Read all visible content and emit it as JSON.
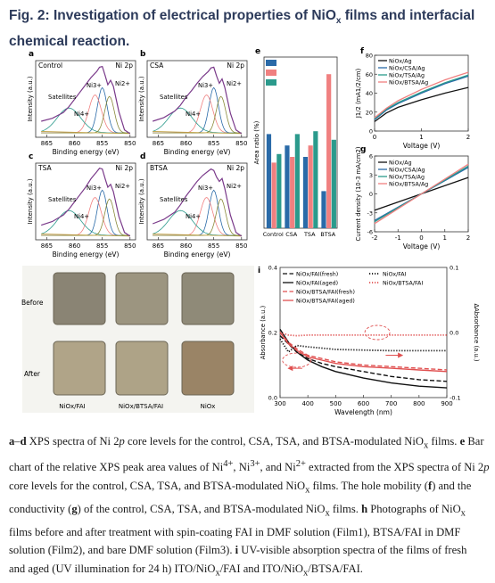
{
  "figure_title": "Fig. 2: Investigation of electrical properties of NiOx films and interfacial chemical reaction.",
  "caption": "a–d XPS spectra of Ni 2p core levels for the control, CSA, TSA, and BTSA-modulated NiOx films. e Bar chart of the relative XPS peak area values of Ni4+, Ni3+, and Ni2+ extracted from the XPS spectra of Ni 2p core levels for the control, CSA, TSA, and BTSA-modulated NiOx films. The hole mobility (f) and the conductivity (g) of the control, CSA, TSA, and BTSA-modulated NiOx films. h Photographs of NiOx films before and after treatment with spin-coating FAI in DMF solution (Film1), BTSA/FAI in DMF solution (Film2), and bare DMF solution (Film3). i UV-visible absorption spectra of the films of fresh and aged (UV illumination for 24 h) ITO/NiOx/FAI and ITO/NiOx/BTSA/FAI.",
  "caption_parts": {
    "l1a": "a",
    "l1b": "–",
    "l1c": "d",
    "l1d": " XPS spectra of Ni 2",
    "l1e": "p",
    "l1f": " core levels for the control, CSA, TSA, and BTSA-modulated NiO",
    "l1g": "x",
    "l1h": " films. ",
    "l1i": "e",
    "l1j": " Bar",
    "l2a": "chart of the relative XPS peak area values of Ni",
    "l2b": "4+",
    "l2c": ", Ni",
    "l2d": "3+",
    "l2e": ", and Ni",
    "l2f": "2+",
    "l2g": " extracted from the XPS spectra of Ni 2",
    "l2h": "p",
    "l3a": "core levels for the control, CSA, TSA, and BTSA-modulated NiO",
    "l3b": "x",
    "l3c": " films. The hole mobility (",
    "l3d": "f",
    "l3e": ") and the",
    "l4a": "conductivity (",
    "l4b": "g",
    "l4c": ") of the control, CSA, TSA, and BTSA-modulated NiO",
    "l4d": "x",
    "l4e": " films. ",
    "l4f": "h",
    "l4g": " Photographs of NiO",
    "l4h": "x",
    "l5a": "films before and after treatment with spin-coating FAI in DMF solution (Film1), BTSA/FAI in DMF",
    "l6a": "solution (Film2), and bare DMF solution (Film3). ",
    "l6b": "i",
    "l6c": " UV-visible absorption spectra of the films of fresh",
    "l7a": "and aged (UV illumination for 24 h) ITO/NiO",
    "l7b": "x",
    "l7c": "/FAI and ITO/NiO",
    "l7d": "x",
    "l7e": "/BTSA/FAI."
  },
  "panel_letters": {
    "a": "a",
    "b": "b",
    "c": "c",
    "d": "d",
    "e": "e",
    "f": "f",
    "g": "g",
    "h": "h",
    "i": "i"
  },
  "chart_data": [
    {
      "panel": "a",
      "type": "line",
      "label": "Control",
      "peak_label": "Ni 2p",
      "xlabel": "Binding energy (eV)",
      "ylabel": "Intensity (a.u.)",
      "x_ticks": [
        "865",
        "860",
        "855",
        "850"
      ],
      "xlim": [
        867,
        849
      ],
      "x_reversed": true,
      "annotations": [
        "Satellites",
        "Ni3+",
        "Ni2+",
        "Ni4+"
      ],
      "series": [
        {
          "x": [
            866,
            864,
            862,
            861,
            860,
            859,
            858,
            857,
            856,
            855.5,
            855,
            854.5,
            854,
            853.5,
            853,
            852,
            851,
            850
          ],
          "values": [
            0.22,
            0.26,
            0.34,
            0.42,
            0.52,
            0.62,
            0.72,
            0.82,
            0.9,
            0.96,
            0.97,
            0.85,
            0.72,
            0.78,
            0.7,
            0.35,
            0.1,
            0.05
          ]
        }
      ]
    },
    {
      "panel": "b",
      "type": "line",
      "label": "CSA",
      "peak_label": "Ni 2p",
      "xlabel": "Binding energy (eV)",
      "ylabel": "Intensity (a.u.)",
      "x_ticks": [
        "865",
        "860",
        "855",
        "850"
      ],
      "xlim": [
        867,
        849
      ],
      "x_reversed": true,
      "annotations": [
        "Satellites",
        "Ni3+",
        "Ni2+",
        "Ni4+"
      ],
      "series": [
        {
          "x": [
            866,
            864,
            862,
            861,
            860,
            859,
            858,
            857,
            856,
            855.5,
            855,
            854.5,
            854,
            853.5,
            853,
            852,
            851,
            850
          ],
          "values": [
            0.22,
            0.27,
            0.36,
            0.44,
            0.55,
            0.64,
            0.74,
            0.83,
            0.9,
            0.95,
            0.96,
            0.84,
            0.74,
            0.8,
            0.68,
            0.33,
            0.1,
            0.05
          ]
        }
      ]
    },
    {
      "panel": "c",
      "type": "line",
      "label": "TSA",
      "peak_label": "Ni 2p",
      "xlabel": "Binding energy (eV)",
      "ylabel": "Intensity (a.u.)",
      "x_ticks": [
        "865",
        "860",
        "855",
        "850"
      ],
      "xlim": [
        867,
        849
      ],
      "x_reversed": true,
      "annotations": [
        "Satellites",
        "Ni3+",
        "Ni2+",
        "Ni4+"
      ],
      "series": [
        {
          "x": [
            866,
            864,
            862,
            861,
            860,
            859,
            858,
            857,
            856,
            855.5,
            855,
            854.5,
            854,
            853.5,
            853,
            852,
            851,
            850
          ],
          "values": [
            0.2,
            0.25,
            0.34,
            0.42,
            0.52,
            0.62,
            0.72,
            0.84,
            0.93,
            0.98,
            0.97,
            0.84,
            0.72,
            0.76,
            0.66,
            0.32,
            0.1,
            0.05
          ]
        }
      ]
    },
    {
      "panel": "d",
      "type": "line",
      "label": "BTSA",
      "peak_label": "Ni 2p",
      "xlabel": "Binding energy (eV)",
      "ylabel": "Intensity (a.u.)",
      "x_ticks": [
        "865",
        "860",
        "855",
        "850"
      ],
      "xlim": [
        867,
        849
      ],
      "x_reversed": true,
      "annotations": [
        "Satellites",
        "Ni3+",
        "Ni2+",
        "Ni4+"
      ],
      "series": [
        {
          "x": [
            866,
            864,
            862,
            861,
            860,
            859,
            858,
            857,
            856,
            855.5,
            855,
            854.5,
            854,
            853.5,
            853,
            852,
            851,
            850
          ],
          "values": [
            0.22,
            0.28,
            0.38,
            0.48,
            0.6,
            0.7,
            0.8,
            0.88,
            0.94,
            0.97,
            0.95,
            0.86,
            0.8,
            0.84,
            0.7,
            0.34,
            0.1,
            0.05
          ]
        }
      ]
    },
    {
      "panel": "e",
      "type": "bar",
      "ylabel": "Area ratio (%)",
      "categories": [
        "Control",
        "CSA",
        "TSA",
        "BTSA"
      ],
      "ylim": [
        0,
        60
      ],
      "series": [
        {
          "name": "Ni4+",
          "color": "#2a6aa8",
          "values": [
            33,
            29,
            25,
            13
          ]
        },
        {
          "name": "Ni3+",
          "color": "#f08080",
          "values": [
            23,
            25,
            29,
            54
          ]
        },
        {
          "name": "Ni2+",
          "color": "#2b9a8c",
          "values": [
            26,
            33,
            34,
            31
          ]
        }
      ]
    },
    {
      "panel": "f",
      "type": "line",
      "xlabel": "Voltage (V)",
      "ylabel": "J1/2 (mA1/2/cm)",
      "x_ticks": [
        "0",
        "1",
        "2"
      ],
      "xlim": [
        0,
        2
      ],
      "ylim": [
        0,
        80
      ],
      "y_ticks": [
        "0",
        "20",
        "40",
        "60",
        "80"
      ],
      "series": [
        {
          "name": "NiOx/Ag",
          "color": "#111111",
          "x": [
            0,
            0.25,
            0.5,
            1,
            1.5,
            2
          ],
          "values": [
            10,
            19,
            25,
            33,
            40,
            46
          ]
        },
        {
          "name": "NiOx/CSA/Ag",
          "color": "#2a6aa8",
          "x": [
            0,
            0.25,
            0.5,
            1,
            1.5,
            2
          ],
          "values": [
            12,
            22,
            29,
            40,
            50,
            58
          ]
        },
        {
          "name": "NiOx/TSA/Ag",
          "color": "#2b9a8c",
          "x": [
            0,
            0.25,
            0.5,
            1,
            1.5,
            2
          ],
          "values": [
            13,
            23,
            30,
            41,
            51,
            59
          ]
        },
        {
          "name": "NiOx/BTSA/Ag",
          "color": "#f08080",
          "x": [
            0,
            0.25,
            0.5,
            1,
            1.5,
            2
          ],
          "values": [
            14,
            24,
            32,
            44,
            54,
            62
          ]
        }
      ]
    },
    {
      "panel": "g",
      "type": "line",
      "xlabel": "Voltage (V)",
      "ylabel": "Current density (10-3 mA/cm2)",
      "x_ticks": [
        "-2",
        "-1",
        "0",
        "1",
        "2"
      ],
      "xlim": [
        -2,
        2
      ],
      "ylim": [
        -6,
        6
      ],
      "y_ticks": [
        "-6",
        "-3",
        "0",
        "3",
        "6"
      ],
      "series": [
        {
          "name": "NiOx/Ag",
          "color": "#111111",
          "x": [
            -2,
            2
          ],
          "values": [
            -2.6,
            2.6
          ]
        },
        {
          "name": "NiOx/CSA/Ag",
          "color": "#2a6aa8",
          "x": [
            -2,
            2
          ],
          "values": [
            -4.2,
            4.2
          ]
        },
        {
          "name": "NiOx/TSA/Ag",
          "color": "#2b9a8c",
          "x": [
            -2,
            2
          ],
          "values": [
            -4.4,
            4.4
          ]
        },
        {
          "name": "NiOx/BTSA/Ag",
          "color": "#f08080",
          "x": [
            -2,
            2
          ],
          "values": [
            -4.7,
            4.7
          ]
        }
      ]
    },
    {
      "panel": "i",
      "type": "line",
      "xlabel": "Wavelength (nm)",
      "ylabel": "Absorbance (a.u.)",
      "y2label": "ΔAbsorbance (a.u.)",
      "x_ticks": [
        "300",
        "400",
        "500",
        "600",
        "700",
        "800",
        "900"
      ],
      "xlim": [
        300,
        900
      ],
      "ylim": [
        0,
        0.4
      ],
      "y_ticks": [
        "0.0",
        "0.2",
        "0.4"
      ],
      "y2lim": [
        -0.1,
        0.1
      ],
      "y2_ticks": [
        "-0.1",
        "0.0",
        "0.1"
      ],
      "series": [
        {
          "name": "NiOx/FAI(fresh)",
          "color": "#111111",
          "style": "dashed",
          "axis": "left",
          "x": [
            300,
            330,
            360,
            400,
            450,
            500,
            600,
            700,
            800,
            900
          ],
          "values": [
            0.19,
            0.165,
            0.14,
            0.12,
            0.105,
            0.095,
            0.08,
            0.065,
            0.055,
            0.05
          ]
        },
        {
          "name": "NiOx/FAI(aged)",
          "color": "#111111",
          "style": "solid",
          "axis": "left",
          "x": [
            300,
            330,
            360,
            400,
            450,
            500,
            600,
            700,
            800,
            900
          ],
          "values": [
            0.21,
            0.17,
            0.14,
            0.115,
            0.095,
            0.08,
            0.06,
            0.045,
            0.035,
            0.03
          ]
        },
        {
          "name": "NiOx/BTSA/FAI(fresh)",
          "color": "#e05050",
          "style": "dashed",
          "axis": "left",
          "x": [
            300,
            330,
            360,
            400,
            450,
            500,
            600,
            700,
            800,
            900
          ],
          "values": [
            0.2,
            0.17,
            0.15,
            0.13,
            0.12,
            0.11,
            0.1,
            0.095,
            0.09,
            0.085
          ]
        },
        {
          "name": "NiOx/BTSA/FAI(aged)",
          "color": "#e05050",
          "style": "solid",
          "axis": "left",
          "x": [
            300,
            330,
            360,
            400,
            450,
            500,
            600,
            700,
            800,
            900
          ],
          "values": [
            0.2,
            0.165,
            0.145,
            0.125,
            0.115,
            0.105,
            0.095,
            0.09,
            0.085,
            0.08
          ]
        },
        {
          "name": "NiOx/FAI",
          "color": "#111111",
          "style": "dotted",
          "axis": "right",
          "x": [
            300,
            330,
            360,
            400,
            450,
            500,
            600,
            700,
            800,
            900
          ],
          "values": [
            -0.01,
            -0.03,
            -0.02,
            -0.022,
            -0.024,
            -0.026,
            -0.027,
            -0.028,
            -0.028,
            -0.028
          ]
        },
        {
          "name": "NiOx/BTSA/FAI",
          "color": "#e05050",
          "style": "dotted",
          "axis": "right",
          "x": [
            300,
            330,
            360,
            400,
            450,
            500,
            600,
            700,
            800,
            900
          ],
          "values": [
            0.0,
            -0.004,
            -0.005,
            -0.004,
            -0.004,
            -0.004,
            -0.004,
            -0.004,
            -0.004,
            -0.004
          ]
        }
      ]
    }
  ],
  "photo_panel": {
    "row_labels": [
      "Before",
      "After"
    ],
    "col_labels": [
      "NiOx/FAI",
      "NiOx/BTSA/FAI",
      "NiOx"
    ],
    "colors_before": [
      "#8a8474",
      "#9c9580",
      "#8f8a78"
    ],
    "colors_after": [
      "#b0a488",
      "#aea387",
      "#9a8466"
    ]
  }
}
